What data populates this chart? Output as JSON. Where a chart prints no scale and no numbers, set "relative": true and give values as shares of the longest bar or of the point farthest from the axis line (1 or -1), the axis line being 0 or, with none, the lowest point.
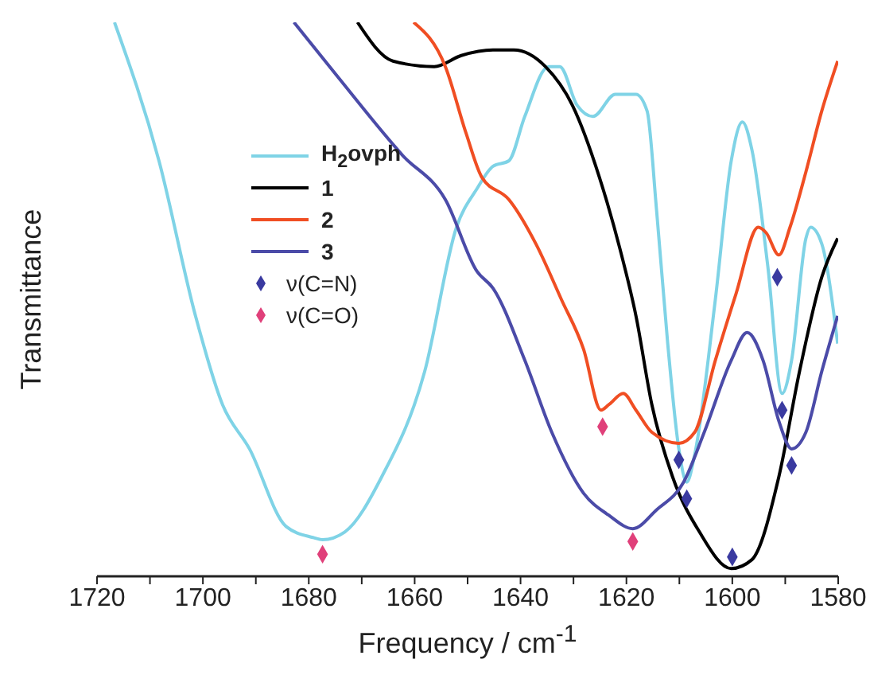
{
  "chart_data": {
    "type": "line",
    "xlabel": "Frequency / cm$^{-1}$",
    "ylabel": "Transmittance",
    "relative": true,
    "tick_labels": "x",
    "legend": "left",
    "grid": false,
    "line_style": "solid",
    "xlim": [
      1720,
      1580
    ],
    "xticks": [
      1720,
      {
        "value": 1710,
        "label": null
      },
      1700,
      {
        "value": 1690,
        "label": null
      },
      1680,
      {
        "value": 1670,
        "label": null
      },
      1660,
      {
        "value": 1650,
        "label": null
      },
      1640,
      {
        "value": 1630,
        "label": null
      },
      1620,
      {
        "value": 1610,
        "label": null
      },
      1600,
      {
        "value": 1590,
        "label": null
      },
      1580
    ],
    "series": [
      {
        "name": "H$_{2}$ovph",
        "color": "#7fd3e6",
        "x": [
          1716.7,
          1708.3,
          1701.4,
          1696.3,
          1691.2,
          1684.3,
          1679.2,
          1677.4,
          1673.2,
          1666.2,
          1658.1,
          1652.1,
          1648.2,
          1645.2,
          1642.2,
          1639.2,
          1634.7,
          1632.6,
          1629.3,
          1626.3,
          1622.1,
          1618.2,
          1616.1,
          1614.3,
          1612.2,
          1610.1,
          1608.6,
          1607.1,
          1603.2,
          1600.2,
          1598.1,
          1596.3,
          1593.3,
          1590.6,
          1588.8,
          1586.1,
          1585.2,
          1583.1,
          1580.1
        ],
        "values": [
          1.0,
          0.75,
          0.47,
          0.31,
          0.23,
          0.09,
          0.07,
          0.066,
          0.08,
          0.18,
          0.37,
          0.63,
          0.7,
          0.74,
          0.75,
          0.83,
          0.92,
          0.92,
          0.85,
          0.83,
          0.87,
          0.87,
          0.84,
          0.66,
          0.42,
          0.23,
          0.17,
          0.22,
          0.5,
          0.75,
          0.82,
          0.77,
          0.56,
          0.33,
          0.39,
          0.61,
          0.63,
          0.6,
          0.42
        ]
      },
      {
        "name": "1",
        "color": "#000000",
        "x": [
          1670.8,
          1664.1,
          1656.3,
          1651.2,
          1645.2,
          1641.3,
          1635.3,
          1630.2,
          1625.1,
          1621.2,
          1618.2,
          1615.2,
          1611.3,
          1606.2,
          1600.2,
          1596.3,
          1591.2,
          1587.3,
          1583.1,
          1580.1
        ],
        "values": [
          1.0,
          0.93,
          0.92,
          0.94,
          0.95,
          0.95,
          0.92,
          0.85,
          0.72,
          0.59,
          0.47,
          0.31,
          0.18,
          0.08,
          0.014,
          0.03,
          0.18,
          0.37,
          0.54,
          0.61
        ]
      },
      {
        "name": "2",
        "color": "#f04e23",
        "x": [
          1660.2,
          1654.2,
          1650.3,
          1647.3,
          1642.2,
          1637.1,
          1632.3,
          1628.1,
          1624.8,
          1623.3,
          1620.6,
          1618.2,
          1615.2,
          1610.1,
          1607.1,
          1603.2,
          1599.3,
          1595.1,
          1593.6,
          1591.2,
          1589.1,
          1586.1,
          1583.1,
          1580.1
        ],
        "values": [
          1.0,
          0.92,
          0.8,
          0.72,
          0.68,
          0.6,
          0.5,
          0.41,
          0.3,
          0.31,
          0.33,
          0.3,
          0.26,
          0.24,
          0.26,
          0.39,
          0.51,
          0.63,
          0.62,
          0.58,
          0.63,
          0.73,
          0.84,
          0.93
        ]
      },
      {
        "name": "3",
        "color": "#4b4ba8",
        "x": [
          1682.8,
          1674.4,
          1662.3,
          1654.2,
          1648.2,
          1645.2,
          1639.2,
          1634.1,
          1628.1,
          1623.3,
          1618.8,
          1614.3,
          1609.2,
          1605.3,
          1600.2,
          1597.2,
          1594.2,
          1591.2,
          1588.8,
          1586.1,
          1583.1,
          1580.1
        ],
        "values": [
          1.0,
          0.9,
          0.76,
          0.68,
          0.55,
          0.52,
          0.39,
          0.26,
          0.15,
          0.11,
          0.086,
          0.12,
          0.17,
          0.26,
          0.39,
          0.44,
          0.39,
          0.28,
          0.23,
          0.26,
          0.37,
          0.47
        ]
      },
      {
        "name": "ν(C=N)",
        "type": "scatter",
        "marker": "diamond",
        "color": "#3a3aa0",
        "x": [
          1610.1,
          1608.6,
          1600.0,
          1591.5,
          1590.6,
          1588.8
        ],
        "values": [
          0.21,
          0.14,
          0.035,
          0.54,
          0.3,
          0.2
        ]
      },
      {
        "name": "ν(C=O)",
        "type": "scatter",
        "marker": "diamond",
        "color": "#e0407a",
        "x": [
          1677.4,
          1624.5,
          1618.8
        ],
        "values": [
          0.04,
          0.27,
          0.063
        ]
      }
    ]
  }
}
